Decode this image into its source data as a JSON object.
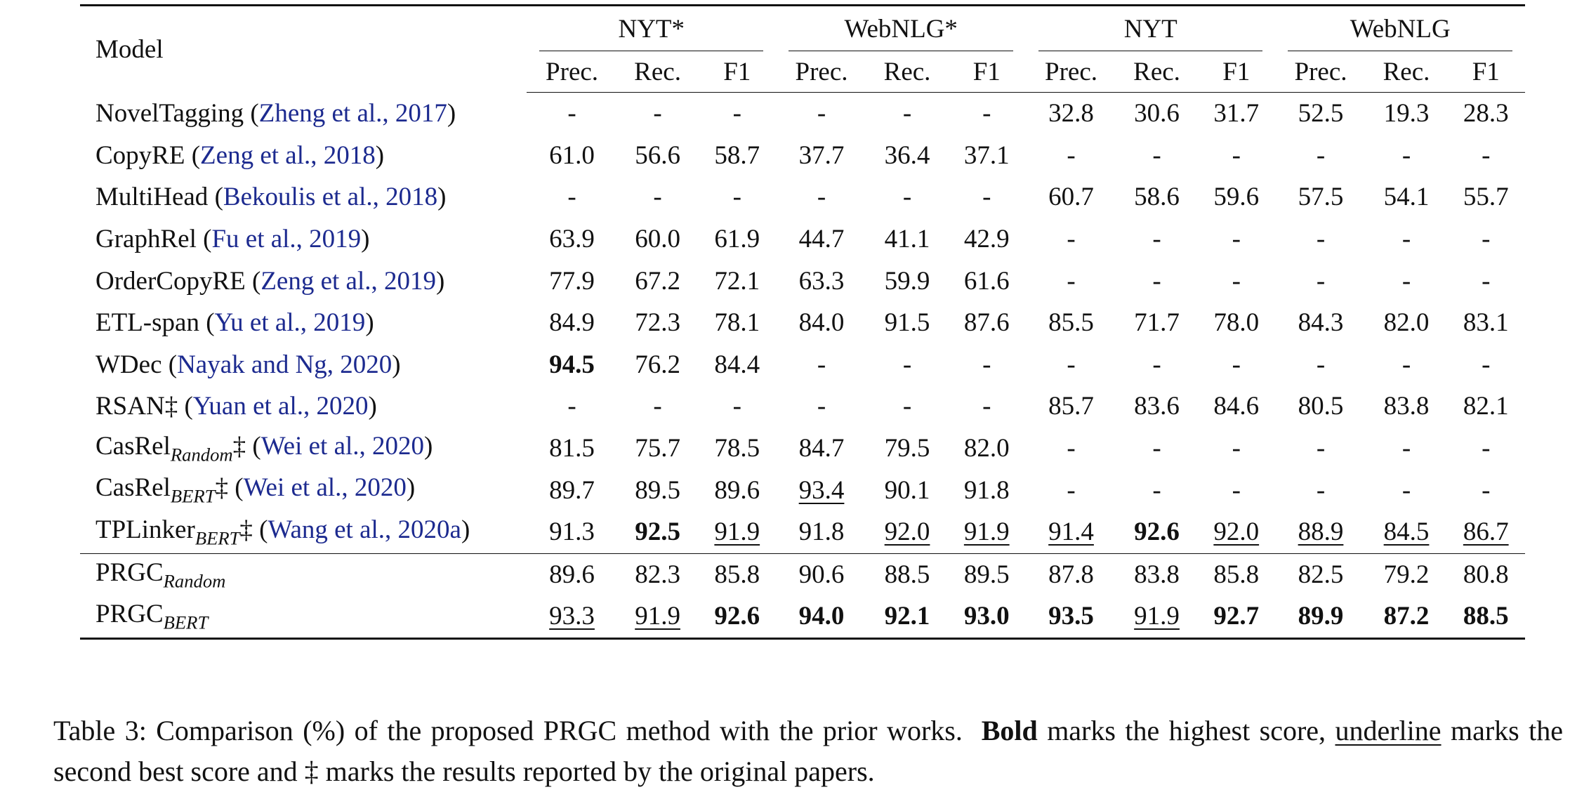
{
  "table": {
    "model_header": "Model",
    "groups": [
      "NYT*",
      "WebNLG*",
      "NYT",
      "WebNLG"
    ],
    "metrics": [
      "Prec.",
      "Rec.",
      "F1"
    ],
    "rows": [
      {
        "name": "NovelTagging",
        "sub": "",
        "mark": "",
        "cite": "Zheng et al., 2017",
        "cells": [
          {
            "v": "-"
          },
          {
            "v": "-"
          },
          {
            "v": "-"
          },
          {
            "v": "-"
          },
          {
            "v": "-"
          },
          {
            "v": "-"
          },
          {
            "v": "32.8"
          },
          {
            "v": "30.6"
          },
          {
            "v": "31.7"
          },
          {
            "v": "52.5"
          },
          {
            "v": "19.3"
          },
          {
            "v": "28.3"
          }
        ]
      },
      {
        "name": "CopyRE",
        "sub": "",
        "mark": "",
        "cite": "Zeng et al., 2018",
        "cells": [
          {
            "v": "61.0"
          },
          {
            "v": "56.6"
          },
          {
            "v": "58.7"
          },
          {
            "v": "37.7"
          },
          {
            "v": "36.4"
          },
          {
            "v": "37.1"
          },
          {
            "v": "-"
          },
          {
            "v": "-"
          },
          {
            "v": "-"
          },
          {
            "v": "-"
          },
          {
            "v": "-"
          },
          {
            "v": "-"
          }
        ]
      },
      {
        "name": "MultiHead",
        "sub": "",
        "mark": "",
        "cite": "Bekoulis et al., 2018",
        "cells": [
          {
            "v": "-"
          },
          {
            "v": "-"
          },
          {
            "v": "-"
          },
          {
            "v": "-"
          },
          {
            "v": "-"
          },
          {
            "v": "-"
          },
          {
            "v": "60.7"
          },
          {
            "v": "58.6"
          },
          {
            "v": "59.6"
          },
          {
            "v": "57.5"
          },
          {
            "v": "54.1"
          },
          {
            "v": "55.7"
          }
        ]
      },
      {
        "name": "GraphRel",
        "sub": "",
        "mark": "",
        "cite": "Fu et al., 2019",
        "cells": [
          {
            "v": "63.9"
          },
          {
            "v": "60.0"
          },
          {
            "v": "61.9"
          },
          {
            "v": "44.7"
          },
          {
            "v": "41.1"
          },
          {
            "v": "42.9"
          },
          {
            "v": "-"
          },
          {
            "v": "-"
          },
          {
            "v": "-"
          },
          {
            "v": "-"
          },
          {
            "v": "-"
          },
          {
            "v": "-"
          }
        ]
      },
      {
        "name": "OrderCopyRE",
        "sub": "",
        "mark": "",
        "cite": "Zeng et al., 2019",
        "cells": [
          {
            "v": "77.9"
          },
          {
            "v": "67.2"
          },
          {
            "v": "72.1"
          },
          {
            "v": "63.3"
          },
          {
            "v": "59.9"
          },
          {
            "v": "61.6"
          },
          {
            "v": "-"
          },
          {
            "v": "-"
          },
          {
            "v": "-"
          },
          {
            "v": "-"
          },
          {
            "v": "-"
          },
          {
            "v": "-"
          }
        ]
      },
      {
        "name": "ETL-span",
        "sub": "",
        "mark": "",
        "cite": "Yu et al., 2019",
        "cells": [
          {
            "v": "84.9"
          },
          {
            "v": "72.3"
          },
          {
            "v": "78.1"
          },
          {
            "v": "84.0"
          },
          {
            "v": "91.5"
          },
          {
            "v": "87.6"
          },
          {
            "v": "85.5"
          },
          {
            "v": "71.7"
          },
          {
            "v": "78.0"
          },
          {
            "v": "84.3"
          },
          {
            "v": "82.0"
          },
          {
            "v": "83.1"
          }
        ]
      },
      {
        "name": "WDec",
        "sub": "",
        "mark": "",
        "cite": "Nayak and Ng, 2020",
        "cells": [
          {
            "v": "94.5",
            "s": "b"
          },
          {
            "v": "76.2"
          },
          {
            "v": "84.4"
          },
          {
            "v": "-"
          },
          {
            "v": "-"
          },
          {
            "v": "-"
          },
          {
            "v": "-"
          },
          {
            "v": "-"
          },
          {
            "v": "-"
          },
          {
            "v": "-"
          },
          {
            "v": "-"
          },
          {
            "v": "-"
          }
        ]
      },
      {
        "name": "RSAN",
        "sub": "",
        "mark": "‡",
        "cite": "Yuan et al., 2020",
        "cells": [
          {
            "v": "-"
          },
          {
            "v": "-"
          },
          {
            "v": "-"
          },
          {
            "v": "-"
          },
          {
            "v": "-"
          },
          {
            "v": "-"
          },
          {
            "v": "85.7"
          },
          {
            "v": "83.6"
          },
          {
            "v": "84.6"
          },
          {
            "v": "80.5"
          },
          {
            "v": "83.8"
          },
          {
            "v": "82.1"
          }
        ]
      },
      {
        "name": "CasRel",
        "sub": "Random",
        "mark": "‡",
        "cite": "Wei et al., 2020",
        "cells": [
          {
            "v": "81.5"
          },
          {
            "v": "75.7"
          },
          {
            "v": "78.5"
          },
          {
            "v": "84.7"
          },
          {
            "v": "79.5"
          },
          {
            "v": "82.0"
          },
          {
            "v": "-"
          },
          {
            "v": "-"
          },
          {
            "v": "-"
          },
          {
            "v": "-"
          },
          {
            "v": "-"
          },
          {
            "v": "-"
          }
        ]
      },
      {
        "name": "CasRel",
        "sub": "BERT",
        "mark": "‡",
        "cite": "Wei et al., 2020",
        "cells": [
          {
            "v": "89.7"
          },
          {
            "v": "89.5"
          },
          {
            "v": "89.6"
          },
          {
            "v": "93.4",
            "s": "u"
          },
          {
            "v": "90.1"
          },
          {
            "v": "91.8"
          },
          {
            "v": "-"
          },
          {
            "v": "-"
          },
          {
            "v": "-"
          },
          {
            "v": "-"
          },
          {
            "v": "-"
          },
          {
            "v": "-"
          }
        ]
      },
      {
        "name": "TPLinker",
        "sub": "BERT",
        "mark": "‡",
        "cite": "Wang et al., 2020a",
        "cells": [
          {
            "v": "91.3"
          },
          {
            "v": "92.5",
            "s": "b"
          },
          {
            "v": "91.9",
            "s": "u"
          },
          {
            "v": "91.8"
          },
          {
            "v": "92.0",
            "s": "u"
          },
          {
            "v": "91.9",
            "s": "u"
          },
          {
            "v": "91.4",
            "s": "u"
          },
          {
            "v": "92.6",
            "s": "b"
          },
          {
            "v": "92.0",
            "s": "u"
          },
          {
            "v": "88.9",
            "s": "u"
          },
          {
            "v": "84.5",
            "s": "u"
          },
          {
            "v": "86.7",
            "s": "u"
          }
        ]
      },
      {
        "name": "PRGC",
        "sub": "Random",
        "mark": "",
        "cite": "",
        "cells": [
          {
            "v": "89.6"
          },
          {
            "v": "82.3"
          },
          {
            "v": "85.8"
          },
          {
            "v": "90.6"
          },
          {
            "v": "88.5"
          },
          {
            "v": "89.5"
          },
          {
            "v": "87.8"
          },
          {
            "v": "83.8"
          },
          {
            "v": "85.8"
          },
          {
            "v": "82.5"
          },
          {
            "v": "79.2"
          },
          {
            "v": "80.8"
          }
        ]
      },
      {
        "name": "PRGC",
        "sub": "BERT",
        "mark": "",
        "cite": "",
        "cells": [
          {
            "v": "93.3",
            "s": "u"
          },
          {
            "v": "91.9",
            "s": "u"
          },
          {
            "v": "92.6",
            "s": "b"
          },
          {
            "v": "94.0",
            "s": "b"
          },
          {
            "v": "92.1",
            "s": "b"
          },
          {
            "v": "93.0",
            "s": "b"
          },
          {
            "v": "93.5",
            "s": "b"
          },
          {
            "v": "91.9",
            "s": "u"
          },
          {
            "v": "92.7",
            "s": "b"
          },
          {
            "v": "89.9",
            "s": "b"
          },
          {
            "v": "87.2",
            "s": "b"
          },
          {
            "v": "88.5",
            "s": "b"
          }
        ]
      }
    ]
  },
  "caption": {
    "part1": "Table 3: Comparison (%) of the proposed PRGC method with the prior works.",
    "bold_word": "Bold",
    "part2": "marks the highest score,",
    "underline_word": "underline",
    "part3": "marks the second best score and ‡ marks the results reported by the original papers."
  },
  "colors": {
    "citation": "#1c2a8f",
    "text": "#111111"
  }
}
